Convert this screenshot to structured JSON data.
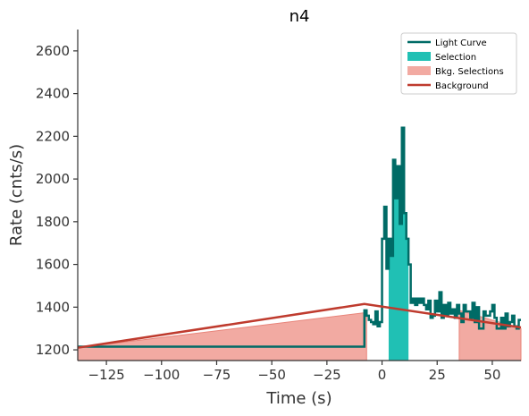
{
  "chart_data": {
    "type": "line",
    "title": "n4",
    "xlabel": "Time (s)",
    "ylabel": "Rate (cnts/s)",
    "xlim": [
      -138,
      63
    ],
    "ylim": [
      1150,
      2700
    ],
    "x_ticks": [
      -125,
      -100,
      -75,
      -50,
      -25,
      0,
      25,
      50
    ],
    "x_tick_labels": [
      "−125",
      "−100",
      "−75",
      "−50",
      "−25",
      "0",
      "25",
      "50"
    ],
    "y_ticks": [
      1200,
      1400,
      1600,
      1800,
      2000,
      2200,
      2400,
      2600
    ],
    "y_tick_labels": [
      "1200",
      "1400",
      "1600",
      "1800",
      "2000",
      "2200",
      "2400",
      "2600"
    ],
    "grid": false,
    "legend_position": "top-right",
    "colors": {
      "light_curve": "#006b66",
      "selection": "#20c0b4",
      "bkg_selection_fill": "#f2aaa2",
      "bkg_selection_edge": "#e8847a",
      "background": "#bf3b2e"
    },
    "legend": [
      {
        "label": "Light Curve",
        "kind": "line",
        "color": "#006b66"
      },
      {
        "label": "Selection",
        "kind": "patch",
        "color": "#20c0b4"
      },
      {
        "label": "Bkg. Selections",
        "kind": "patch",
        "color": "#f2aaa2"
      },
      {
        "label": "Background",
        "kind": "line",
        "color": "#bf3b2e"
      }
    ],
    "light_curve": {
      "name": "Light Curve",
      "step_x": [
        -138,
        -130,
        -8,
        -7,
        -6,
        -5,
        -4,
        -3,
        -2,
        -1,
        0,
        1,
        2,
        3,
        4,
        5,
        6,
        7,
        8,
        9,
        10,
        11,
        12,
        13,
        14,
        15,
        16,
        17,
        18,
        19,
        20,
        21,
        22,
        23,
        24,
        25,
        26,
        27,
        28,
        29,
        30,
        31,
        32,
        33,
        34,
        35,
        36,
        37,
        38,
        39,
        40,
        41,
        42,
        43,
        44,
        45,
        46,
        47,
        48,
        49,
        50,
        51,
        52,
        53,
        54,
        55,
        56,
        57,
        58,
        59,
        60,
        61,
        62,
        63
      ],
      "step_y": [
        1215,
        1215,
        1385,
        1360,
        1340,
        1330,
        1320,
        1380,
        1310,
        1330,
        1720,
        1870,
        1580,
        1720,
        1640,
        2090,
        1910,
        2060,
        1790,
        2240,
        1840,
        1720,
        1600,
        1420,
        1440,
        1410,
        1440,
        1420,
        1440,
        1410,
        1390,
        1430,
        1350,
        1360,
        1430,
        1380,
        1470,
        1350,
        1410,
        1360,
        1420,
        1370,
        1390,
        1350,
        1410,
        1370,
        1330,
        1410,
        1380,
        1380,
        1350,
        1420,
        1330,
        1400,
        1300,
        1300,
        1380,
        1360,
        1360,
        1380,
        1410,
        1350,
        1300,
        1300,
        1350,
        1300,
        1370,
        1310,
        1330,
        1360,
        1310,
        1300,
        1340
      ]
    },
    "selection": {
      "name": "Selection",
      "x_range": [
        3,
        12
      ],
      "step_x": [
        3,
        4,
        5,
        6,
        7,
        8,
        9,
        10,
        11,
        12
      ],
      "step_y": [
        1720,
        1640,
        2090,
        1910,
        2060,
        1790,
        2240,
        1840,
        1720
      ]
    },
    "bkg_selections": [
      {
        "x_range": [
          -138,
          -7
        ],
        "y_start": 1210,
        "y_end": 1375
      },
      {
        "x_range": [
          35,
          63
        ],
        "y_start": 1385,
        "y_end": 1300
      }
    ],
    "background": {
      "name": "Background",
      "x": [
        -138,
        -8,
        63
      ],
      "y": [
        1210,
        1415,
        1305
      ]
    }
  }
}
